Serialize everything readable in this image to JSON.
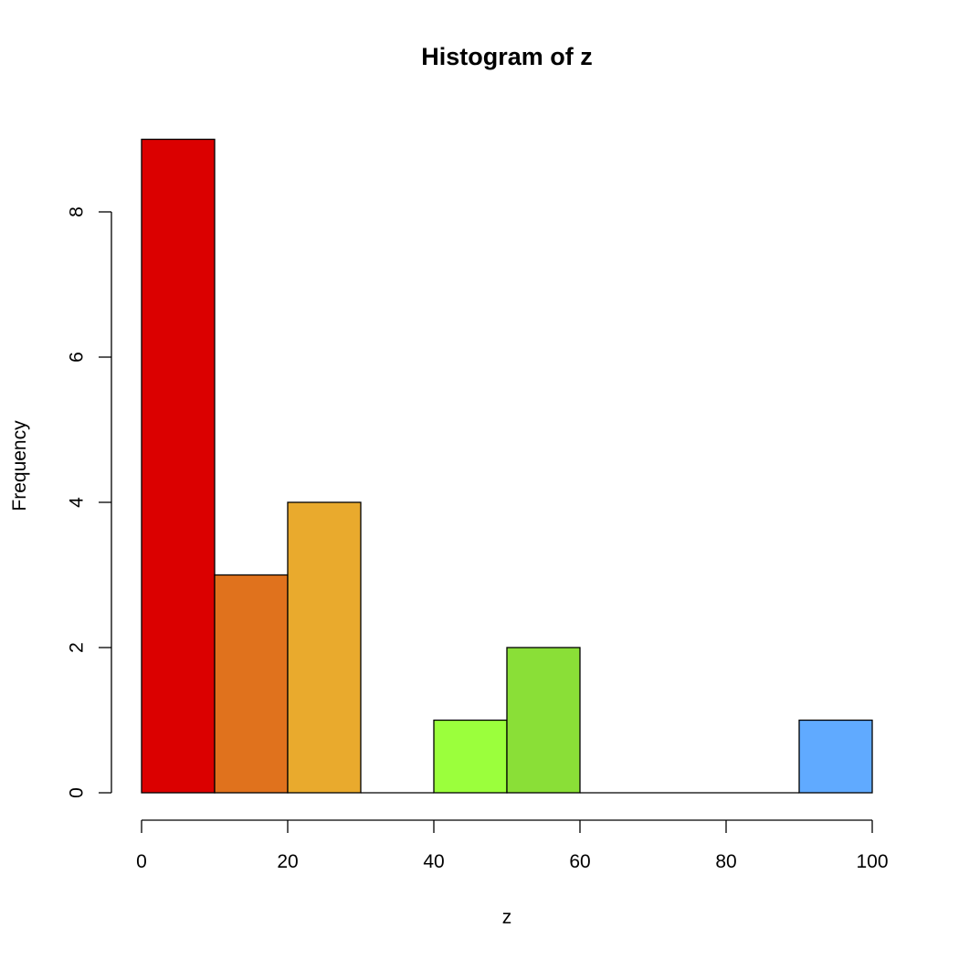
{
  "chart_data": {
    "type": "bar",
    "title": "Histogram of z",
    "xlabel": "z",
    "ylabel": "Frequency",
    "xlim": [
      0,
      100
    ],
    "ylim": [
      0,
      9
    ],
    "bins": [
      {
        "start": 0,
        "end": 10,
        "count": 9,
        "color": "#DB0000"
      },
      {
        "start": 10,
        "end": 20,
        "count": 3,
        "color": "#E0721D"
      },
      {
        "start": 20,
        "end": 30,
        "count": 4,
        "color": "#E9AA2D"
      },
      {
        "start": 30,
        "end": 40,
        "count": 0,
        "color": "#F0E03C"
      },
      {
        "start": 40,
        "end": 50,
        "count": 1,
        "color": "#9BFF3C"
      },
      {
        "start": 50,
        "end": 60,
        "count": 2,
        "color": "#8ADF37"
      },
      {
        "start": 60,
        "end": 70,
        "count": 0,
        "color": "#5CC86A"
      },
      {
        "start": 70,
        "end": 80,
        "count": 0,
        "color": "#4FB8B0"
      },
      {
        "start": 80,
        "end": 90,
        "count": 0,
        "color": "#5AA0E8"
      },
      {
        "start": 90,
        "end": 100,
        "count": 1,
        "color": "#60AAFF"
      }
    ],
    "x_ticks": [
      0,
      20,
      40,
      60,
      80,
      100
    ],
    "y_ticks": [
      0,
      2,
      4,
      6,
      8
    ],
    "grid": false,
    "legend": "none"
  }
}
